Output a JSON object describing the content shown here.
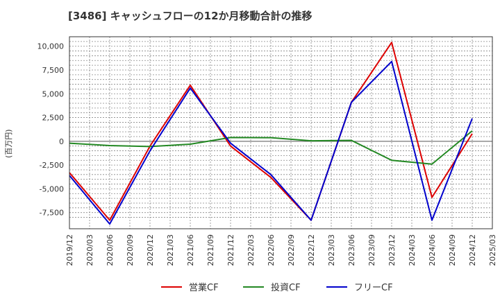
{
  "chart_data": {
    "type": "line",
    "title": "[3486]  キャッシュフローの12か月移動合計の推移",
    "ylabel": "(百万円)",
    "xlabel": "",
    "ylim": [
      -9200,
      11000
    ],
    "x_labels": [
      "2019/12",
      "2020/03",
      "2020/06",
      "2020/09",
      "2020/12",
      "2021/03",
      "2021/06",
      "2021/09",
      "2021/12",
      "2022/03",
      "2022/06",
      "2022/09",
      "2022/12",
      "2023/03",
      "2023/06",
      "2023/09",
      "2023/12",
      "2024/03",
      "2024/06",
      "2024/09",
      "2024/12",
      "2025/03"
    ],
    "y_ticks": [
      {
        "value": 10000,
        "label": "10,000"
      },
      {
        "value": 7500,
        "label": "7,500"
      },
      {
        "value": 5000,
        "label": "5,000"
      },
      {
        "value": 2500,
        "label": "2,500"
      },
      {
        "value": 0,
        "label": "0"
      },
      {
        "value": -2500,
        "label": "-2,500"
      },
      {
        "value": -5000,
        "label": "-5,000"
      },
      {
        "value": -7500,
        "label": "-7,500"
      }
    ],
    "grid": true,
    "legend_position": "bottom",
    "series": [
      {
        "name": "営業CF",
        "color": "#dd0000",
        "points": [
          [
            0,
            -3300
          ],
          [
            2,
            -8300
          ],
          [
            4,
            -500
          ],
          [
            6,
            5900
          ],
          [
            8,
            -500
          ],
          [
            10,
            -3800
          ],
          [
            12,
            -8300
          ],
          [
            14,
            4100
          ],
          [
            16,
            10400
          ],
          [
            18,
            -5900
          ],
          [
            20,
            800
          ]
        ]
      },
      {
        "name": "投資CF",
        "color": "#228822",
        "points": [
          [
            0,
            -200
          ],
          [
            2,
            -450
          ],
          [
            4,
            -550
          ],
          [
            6,
            -300
          ],
          [
            8,
            400
          ],
          [
            10,
            380
          ],
          [
            12,
            50
          ],
          [
            14,
            100
          ],
          [
            16,
            -2000
          ],
          [
            18,
            -2400
          ],
          [
            20,
            1100
          ]
        ]
      },
      {
        "name": "フリーCF",
        "color": "#0000cc",
        "points": [
          [
            0,
            -3600
          ],
          [
            2,
            -8700
          ],
          [
            4,
            -1000
          ],
          [
            6,
            5600
          ],
          [
            8,
            -200
          ],
          [
            10,
            -3500
          ],
          [
            12,
            -8300
          ],
          [
            14,
            4100
          ],
          [
            16,
            8400
          ],
          [
            18,
            -8300
          ],
          [
            20,
            2400
          ]
        ]
      }
    ]
  }
}
